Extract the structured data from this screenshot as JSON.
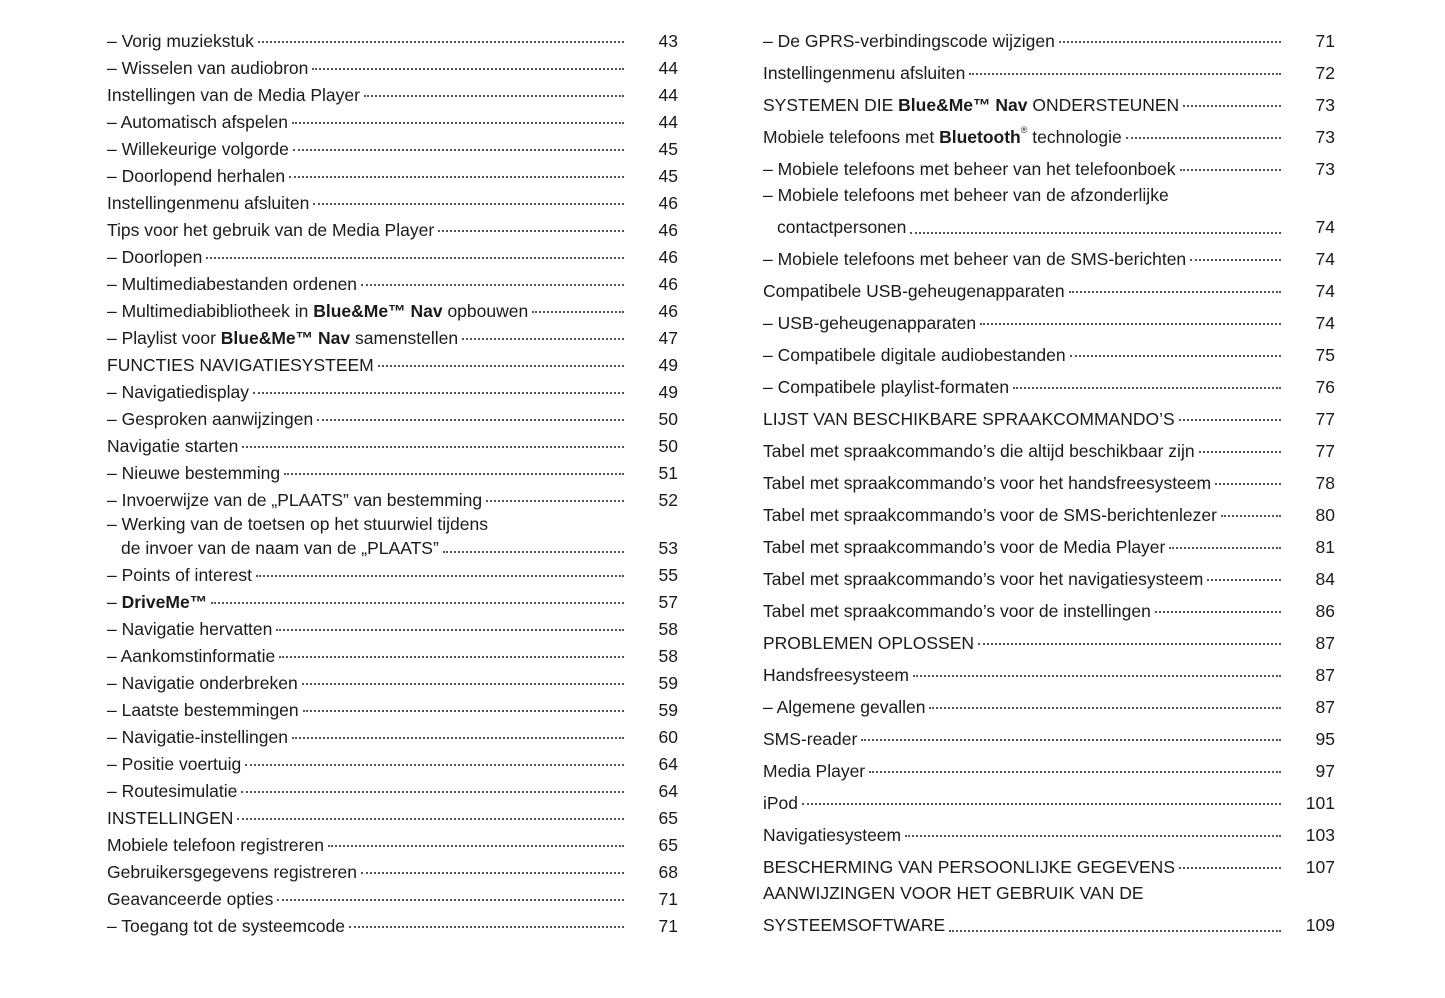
{
  "left": [
    {
      "parts": [
        {
          "t": "– Vorig muziekstuk"
        }
      ],
      "page": "43"
    },
    {
      "parts": [
        {
          "t": "– Wisselen van audiobron"
        }
      ],
      "page": "44"
    },
    {
      "parts": [
        {
          "t": "Instellingen van de Media Player"
        }
      ],
      "page": "44"
    },
    {
      "parts": [
        {
          "t": "– Automatisch afspelen"
        }
      ],
      "page": "44"
    },
    {
      "parts": [
        {
          "t": "– Willekeurige volgorde"
        }
      ],
      "page": "45"
    },
    {
      "parts": [
        {
          "t": "– Doorlopend herhalen"
        }
      ],
      "page": "45"
    },
    {
      "parts": [
        {
          "t": "Instellingenmenu afsluiten"
        }
      ],
      "page": "46"
    },
    {
      "parts": [
        {
          "t": "Tips voor het gebruik van de Media Player"
        }
      ],
      "page": "46"
    },
    {
      "parts": [
        {
          "t": "– Doorlopen"
        }
      ],
      "page": "46"
    },
    {
      "parts": [
        {
          "t": "– Multimediabestanden ordenen"
        }
      ],
      "page": "46"
    },
    {
      "parts": [
        {
          "t": "– Multimediabibliotheek in "
        },
        {
          "t": "Blue&Me™ Nav",
          "b": true
        },
        {
          "t": " opbouwen"
        }
      ],
      "page": "46"
    },
    {
      "parts": [
        {
          "t": "– Playlist voor "
        },
        {
          "t": "Blue&Me™ Nav",
          "b": true
        },
        {
          "t": " samenstellen"
        }
      ],
      "page": "47"
    },
    {
      "parts": [
        {
          "t": "FUNCTIES NAVIGATIESYSTEEM"
        }
      ],
      "page": "49"
    },
    {
      "parts": [
        {
          "t": "– Navigatiedisplay"
        }
      ],
      "page": "49"
    },
    {
      "parts": [
        {
          "t": "– Gesproken aanwijzingen"
        }
      ],
      "page": "50"
    },
    {
      "parts": [
        {
          "t": "Navigatie starten"
        }
      ],
      "page": "50"
    },
    {
      "parts": [
        {
          "t": "– Nieuwe bestemming"
        }
      ],
      "page": "51"
    },
    {
      "parts": [
        {
          "t": "– Invoerwijze van de „PLAATS” van bestemming"
        }
      ],
      "page": "52"
    },
    {
      "first": "– Werking van de toetsen op het stuurwiel tijdens",
      "parts": [
        {
          "t": "de invoer van de naam van de „PLAATS”"
        }
      ],
      "page": "53"
    },
    {
      "parts": [
        {
          "t": "– Points of interest"
        }
      ],
      "page": "55"
    },
    {
      "parts": [
        {
          "t": "– "
        },
        {
          "t": "DriveMe™",
          "b": true
        }
      ],
      "page": "57"
    },
    {
      "parts": [
        {
          "t": "– Navigatie hervatten"
        }
      ],
      "page": "58"
    },
    {
      "parts": [
        {
          "t": "– Aankomstinformatie"
        }
      ],
      "page": "58"
    },
    {
      "parts": [
        {
          "t": "– Navigatie onderbreken"
        }
      ],
      "page": "59"
    },
    {
      "parts": [
        {
          "t": "– Laatste bestemmingen"
        }
      ],
      "page": "59"
    },
    {
      "parts": [
        {
          "t": "– Navigatie-instellingen"
        }
      ],
      "page": "60"
    },
    {
      "parts": [
        {
          "t": "– Positie voertuig"
        }
      ],
      "page": "64"
    },
    {
      "parts": [
        {
          "t": "– Routesimulatie"
        }
      ],
      "page": "64"
    },
    {
      "parts": [
        {
          "t": "INSTELLINGEN"
        }
      ],
      "page": "65"
    },
    {
      "parts": [
        {
          "t": "Mobiele telefoon registreren"
        }
      ],
      "page": "65"
    },
    {
      "parts": [
        {
          "t": "Gebruikersgegevens registreren"
        }
      ],
      "page": "68"
    },
    {
      "parts": [
        {
          "t": "Geavanceerde opties"
        }
      ],
      "page": "71"
    },
    {
      "parts": [
        {
          "t": "– Toegang tot de systeemcode"
        }
      ],
      "page": "71"
    }
  ],
  "right": [
    {
      "parts": [
        {
          "t": "– De GPRS-verbindingscode wijzigen"
        }
      ],
      "page": "71"
    },
    {
      "parts": [
        {
          "t": "Instellingenmenu afsluiten"
        }
      ],
      "page": "72"
    },
    {
      "parts": [
        {
          "t": "SYSTEMEN DIE "
        },
        {
          "t": "Blue&Me™ Nav",
          "b": true
        },
        {
          "t": " ONDERSTEUNEN"
        }
      ],
      "page": "73"
    },
    {
      "parts": [
        {
          "t": "Mobiele telefoons met "
        },
        {
          "t": "Bluetooth",
          "b": true
        },
        {
          "t": "®",
          "sup": true
        },
        {
          "t": " technologie"
        }
      ],
      "page": "73"
    },
    {
      "parts": [
        {
          "t": "– Mobiele telefoons met beheer van het telefoonboek"
        }
      ],
      "page": "73"
    },
    {
      "first": "– Mobiele telefoons met beheer van de afzonderlijke",
      "parts": [
        {
          "t": "contactpersonen"
        }
      ],
      "page": "74"
    },
    {
      "parts": [
        {
          "t": "– Mobiele telefoons met beheer van de SMS-berichten"
        }
      ],
      "page": "74"
    },
    {
      "parts": [
        {
          "t": "Compatibele USB-geheugenapparaten"
        }
      ],
      "page": "74"
    },
    {
      "parts": [
        {
          "t": "– USB-geheugenapparaten"
        }
      ],
      "page": "74"
    },
    {
      "parts": [
        {
          "t": "– Compatibele digitale audiobestanden"
        }
      ],
      "page": "75"
    },
    {
      "parts": [
        {
          "t": "– Compatibele playlist-formaten"
        }
      ],
      "page": "76"
    },
    {
      "parts": [
        {
          "t": "LIJST VAN BESCHIKBARE SPRAAKCOMMANDO’S"
        }
      ],
      "page": "77"
    },
    {
      "parts": [
        {
          "t": "Tabel met spraakcommando’s die altijd beschikbaar zijn"
        }
      ],
      "page": "77"
    },
    {
      "parts": [
        {
          "t": "Tabel met spraakcommando’s voor het handsfreesysteem"
        }
      ],
      "page": "78"
    },
    {
      "parts": [
        {
          "t": "Tabel met spraakcommando’s voor de SMS-berichtenlezer"
        }
      ],
      "page": "80"
    },
    {
      "parts": [
        {
          "t": "Tabel met spraakcommando’s voor de Media Player"
        }
      ],
      "page": "81"
    },
    {
      "parts": [
        {
          "t": "Tabel met spraakcommando’s voor het navigatiesysteem"
        }
      ],
      "page": "84"
    },
    {
      "parts": [
        {
          "t": "Tabel met spraakcommando’s voor de instellingen"
        }
      ],
      "page": "86"
    },
    {
      "parts": [
        {
          "t": "PROBLEMEN OPLOSSEN"
        }
      ],
      "page": "87"
    },
    {
      "parts": [
        {
          "t": "Handsfreesysteem"
        }
      ],
      "page": "87"
    },
    {
      "parts": [
        {
          "t": "– Algemene gevallen"
        }
      ],
      "page": "87"
    },
    {
      "parts": [
        {
          "t": "SMS-reader"
        }
      ],
      "page": "95"
    },
    {
      "parts": [
        {
          "t": "Media Player"
        }
      ],
      "page": "97"
    },
    {
      "parts": [
        {
          "t": "iPod"
        }
      ],
      "page": "101"
    },
    {
      "parts": [
        {
          "t": "Navigatiesysteem"
        }
      ],
      "page": "103"
    },
    {
      "parts": [
        {
          "t": "BESCHERMING VAN PERSOONLIJKE GEGEVENS"
        }
      ],
      "page": "107"
    },
    {
      "first": "AANWIJZINGEN VOOR HET GEBRUIK VAN DE",
      "parts": [
        {
          "t": "SYSTEEMSOFTWARE"
        }
      ],
      "page": "109",
      "nocont": true
    }
  ]
}
